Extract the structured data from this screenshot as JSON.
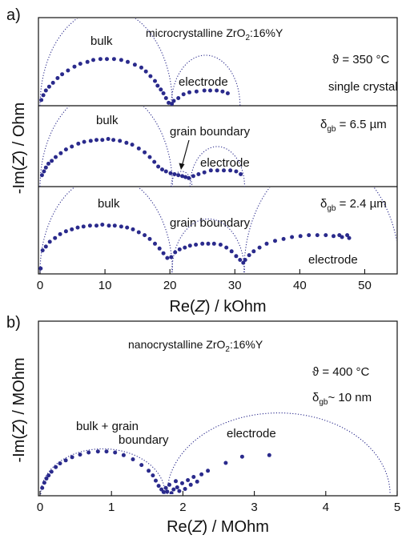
{
  "panel_a": {
    "panel_label": "a)",
    "ylabel": {
      "pre": "-Im(",
      "var": "Z",
      "post": ") / Ohm"
    },
    "xlabel": {
      "pre": "Re(",
      "var": "Z",
      "post": ") / kOhm"
    },
    "material": {
      "pre": "microcrystalline ZrO",
      "sub": "2",
      "post": ":16%Y"
    },
    "temperature": "ϑ = 350 °C",
    "subplots": [
      {
        "labels": {
          "bulk": "bulk",
          "electrode": "electrode",
          "sample": "single crystal"
        }
      },
      {
        "labels": {
          "bulk": "bulk",
          "grain_boundary": "grain boundary",
          "electrode": "electrode"
        },
        "delta": {
          "sym": "δ",
          "sub": "gb",
          "post": " = 6.5 µm"
        }
      },
      {
        "labels": {
          "bulk": "bulk",
          "grain_boundary": "grain boundary",
          "electrode": "electrode"
        },
        "delta": {
          "sym": "δ",
          "sub": "gb",
          "post": " = 2.4 µm"
        }
      }
    ]
  },
  "panel_b": {
    "panel_label": "b)",
    "ylabel": {
      "pre": "-Im(",
      "var": "Z",
      "post": ") / MOhm"
    },
    "xlabel": {
      "pre": "Re(",
      "var": "Z",
      "post": ") / MOhm"
    },
    "material": {
      "pre": "nanocrystalline ZrO",
      "sub": "2",
      "post": ":16%Y"
    },
    "temperature": "ϑ = 400 °C",
    "delta": {
      "sym": "δ",
      "sub": "gb",
      "post": "~ 10 nm"
    },
    "labels": {
      "bulk_gb_1": "bulk + grain",
      "bulk_gb_2": "boundary",
      "electrode": "electrode"
    }
  },
  "colors": {
    "data": "#2a2a8c",
    "fit": "#2a2a8c",
    "axis": "#111111"
  },
  "chart_data": [
    {
      "type": "scatter",
      "name": "a) single crystal",
      "xlim": [
        0,
        55
      ],
      "xticks": [
        0,
        10,
        20,
        30,
        40,
        50
      ],
      "x_unit": "kOhm",
      "ylim": [
        0,
        6
      ],
      "arcs": [
        {
          "center": 10.2,
          "radius": 10.2
        },
        {
          "center": 25.5,
          "radius": 5.3
        }
      ],
      "points": [
        [
          0.2,
          0.6
        ],
        [
          0.5,
          1.1
        ],
        [
          0.9,
          1.6
        ],
        [
          1.4,
          2.0
        ],
        [
          2.0,
          2.4
        ],
        [
          2.7,
          2.9
        ],
        [
          3.4,
          3.3
        ],
        [
          4.3,
          3.7
        ],
        [
          5.3,
          4.1
        ],
        [
          6.2,
          4.4
        ],
        [
          7.3,
          4.6
        ],
        [
          8.2,
          4.8
        ],
        [
          9.3,
          4.9
        ],
        [
          10.3,
          4.9
        ],
        [
          11.4,
          4.9
        ],
        [
          12.5,
          4.8
        ],
        [
          13.5,
          4.6
        ],
        [
          14.6,
          4.3
        ],
        [
          15.6,
          4.0
        ],
        [
          16.3,
          3.6
        ],
        [
          17.0,
          3.1
        ],
        [
          17.7,
          2.6
        ],
        [
          18.1,
          2.1
        ],
        [
          18.6,
          1.7
        ],
        [
          19.0,
          1.3
        ],
        [
          19.4,
          0.8
        ],
        [
          19.8,
          0.3
        ],
        [
          20.3,
          0.2
        ],
        [
          20.6,
          0.5
        ],
        [
          21.3,
          0.8
        ],
        [
          22.1,
          1.2
        ],
        [
          23.0,
          1.4
        ],
        [
          24.1,
          1.5
        ],
        [
          25.3,
          1.6
        ],
        [
          26.2,
          1.6
        ],
        [
          27.2,
          1.6
        ],
        [
          28.1,
          1.5
        ],
        [
          28.9,
          1.3
        ]
      ]
    },
    {
      "type": "scatter",
      "name": "a) delta_gb = 6.5 um",
      "xlim": [
        0,
        55
      ],
      "xticks": [
        0,
        10,
        20,
        30,
        40,
        50
      ],
      "x_unit": "kOhm",
      "ylim": [
        0,
        6
      ],
      "arcs": [
        {
          "center": 10.2,
          "radius": 10.2
        },
        {
          "center": 21.8,
          "radius": 1.6
        },
        {
          "center": 27.3,
          "radius": 4.2
        }
      ],
      "points": [
        [
          0.3,
          1.2
        ],
        [
          0.6,
          1.6
        ],
        [
          0.9,
          2.0
        ],
        [
          1.3,
          2.4
        ],
        [
          1.8,
          2.7
        ],
        [
          2.4,
          3.1
        ],
        [
          3.2,
          3.5
        ],
        [
          4.0,
          3.9
        ],
        [
          4.9,
          4.2
        ],
        [
          5.9,
          4.5
        ],
        [
          6.8,
          4.7
        ],
        [
          7.8,
          4.8
        ],
        [
          8.7,
          4.9
        ],
        [
          9.6,
          4.9
        ],
        [
          10.5,
          5.0
        ],
        [
          11.3,
          4.9
        ],
        [
          12.3,
          4.8
        ],
        [
          13.3,
          4.6
        ],
        [
          14.2,
          4.4
        ],
        [
          15.2,
          4.0
        ],
        [
          16.1,
          3.6
        ],
        [
          16.9,
          3.1
        ],
        [
          17.6,
          2.6
        ],
        [
          18.2,
          2.1
        ],
        [
          18.8,
          1.8
        ],
        [
          19.4,
          1.6
        ],
        [
          20.1,
          1.4
        ],
        [
          20.7,
          1.3
        ],
        [
          21.3,
          1.2
        ],
        [
          21.9,
          1.1
        ],
        [
          22.4,
          1.0
        ],
        [
          22.9,
          0.9
        ],
        [
          23.6,
          1.1
        ],
        [
          24.4,
          1.3
        ],
        [
          25.3,
          1.5
        ],
        [
          26.3,
          1.7
        ],
        [
          27.3,
          1.7
        ],
        [
          28.3,
          1.7
        ],
        [
          29.3,
          1.7
        ],
        [
          30.2,
          1.6
        ],
        [
          30.9,
          1.3
        ]
      ]
    },
    {
      "type": "scatter",
      "name": "a) delta_gb = 2.4 um",
      "xlim": [
        0,
        55
      ],
      "xticks": [
        0,
        10,
        20,
        30,
        40,
        50
      ],
      "x_unit": "kOhm",
      "ylim": [
        0,
        6
      ],
      "arcs": [
        {
          "center": 10.2,
          "radius": 10.2
        },
        {
          "center": 25.9,
          "radius": 5.6
        },
        {
          "center": 43.4,
          "radius": 12.0
        }
      ],
      "points": [
        [
          0.1,
          0.4
        ],
        [
          0.4,
          2.3
        ],
        [
          0.9,
          2.7
        ],
        [
          1.5,
          3.2
        ],
        [
          2.3,
          3.6
        ],
        [
          3.1,
          4.0
        ],
        [
          4.0,
          4.3
        ],
        [
          4.9,
          4.5
        ],
        [
          5.8,
          4.7
        ],
        [
          6.7,
          4.8
        ],
        [
          7.7,
          4.9
        ],
        [
          8.7,
          4.9
        ],
        [
          9.6,
          5.0
        ],
        [
          10.6,
          4.9
        ],
        [
          11.5,
          4.9
        ],
        [
          12.5,
          4.8
        ],
        [
          13.4,
          4.7
        ],
        [
          14.3,
          4.5
        ],
        [
          15.2,
          4.2
        ],
        [
          16.1,
          3.9
        ],
        [
          16.9,
          3.5
        ],
        [
          17.7,
          3.0
        ],
        [
          18.4,
          2.5
        ],
        [
          19.0,
          2.0
        ],
        [
          19.6,
          1.5
        ],
        [
          20.2,
          1.6
        ],
        [
          20.8,
          2.1
        ],
        [
          21.5,
          2.4
        ],
        [
          22.3,
          2.6
        ],
        [
          23.1,
          2.8
        ],
        [
          24.0,
          2.9
        ],
        [
          25.0,
          3.0
        ],
        [
          25.9,
          3.0
        ],
        [
          26.8,
          3.0
        ],
        [
          27.8,
          2.9
        ],
        [
          28.7,
          2.6
        ],
        [
          29.5,
          2.2
        ],
        [
          30.2,
          1.7
        ],
        [
          30.8,
          1.3
        ],
        [
          31.3,
          1.0
        ],
        [
          31.6,
          1.3
        ],
        [
          32.2,
          1.8
        ],
        [
          32.9,
          2.2
        ],
        [
          33.8,
          2.6
        ],
        [
          34.9,
          3.0
        ],
        [
          36.2,
          3.3
        ],
        [
          37.5,
          3.5
        ],
        [
          38.8,
          3.7
        ],
        [
          40.1,
          3.8
        ],
        [
          41.4,
          3.9
        ],
        [
          42.7,
          3.9
        ],
        [
          44.0,
          3.9
        ],
        [
          45.2,
          3.8
        ],
        [
          46.5,
          3.7
        ],
        [
          47.3,
          3.9
        ],
        [
          46.1,
          3.9
        ],
        [
          47.6,
          3.6
        ]
      ]
    },
    {
      "type": "scatter",
      "name": "b) nanocrystalline",
      "xlim": [
        0,
        5
      ],
      "xticks": [
        0,
        1,
        2,
        3,
        4,
        5
      ],
      "x_unit": "MOhm",
      "ylim": [
        0,
        3.3
      ],
      "arcs": [
        {
          "center": 0.88,
          "radius": 0.87
        },
        {
          "center": 3.34,
          "radius": 1.56
        }
      ],
      "points": [
        [
          0.03,
          0.12
        ],
        [
          0.06,
          0.22
        ],
        [
          0.09,
          0.3
        ],
        [
          0.12,
          0.36
        ],
        [
          0.16,
          0.43
        ],
        [
          0.22,
          0.52
        ],
        [
          0.28,
          0.59
        ],
        [
          0.36,
          0.65
        ],
        [
          0.45,
          0.71
        ],
        [
          0.56,
          0.76
        ],
        [
          0.68,
          0.8
        ],
        [
          0.81,
          0.82
        ],
        [
          0.93,
          0.82
        ],
        [
          1.05,
          0.8
        ],
        [
          1.17,
          0.75
        ],
        [
          1.3,
          0.67
        ],
        [
          1.42,
          0.56
        ],
        [
          1.52,
          0.45
        ],
        [
          1.58,
          0.36
        ],
        [
          1.62,
          0.26
        ],
        [
          1.66,
          0.16
        ],
        [
          1.7,
          0.09
        ],
        [
          1.73,
          0.04
        ],
        [
          1.76,
          0.12
        ],
        [
          1.78,
          0.05
        ],
        [
          1.81,
          0.18
        ],
        [
          1.84,
          0.02
        ],
        [
          1.87,
          0.09
        ],
        [
          1.9,
          0.25
        ],
        [
          1.92,
          0.13
        ],
        [
          1.95,
          0.06
        ],
        [
          1.99,
          0.21
        ],
        [
          2.03,
          0.1
        ],
        [
          2.07,
          0.27
        ],
        [
          2.11,
          0.18
        ],
        [
          2.15,
          0.33
        ],
        [
          2.2,
          0.24
        ],
        [
          2.26,
          0.38
        ],
        [
          2.35,
          0.45
        ],
        [
          2.6,
          0.6
        ],
        [
          2.83,
          0.72
        ],
        [
          3.21,
          0.75
        ]
      ]
    }
  ]
}
